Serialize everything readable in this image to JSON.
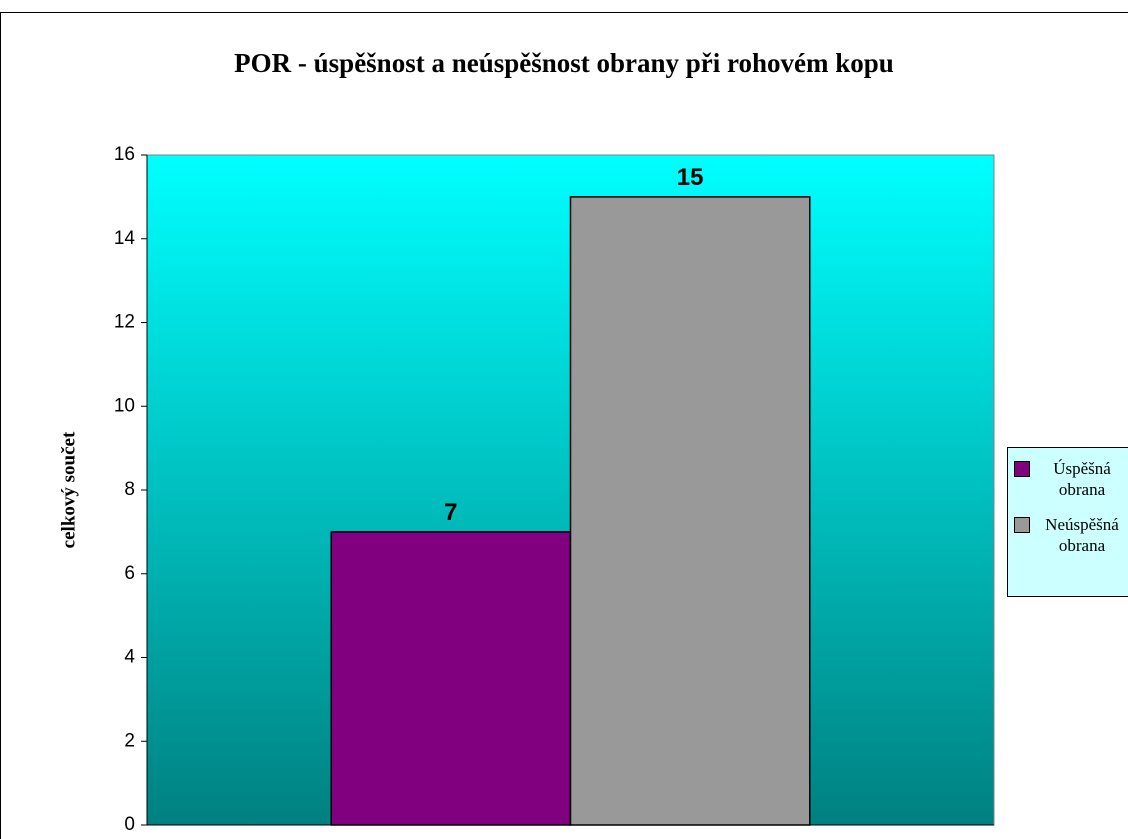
{
  "chart_data": {
    "type": "bar",
    "title": "POR - úspěšnost a neúspěšnost obrany při rohovém kopu",
    "y_label": "celkový součet",
    "categories": [
      null
    ],
    "series": [
      {
        "name": "Úspěšná obrana",
        "color": "#800080",
        "values": [
          7
        ]
      },
      {
        "name": "Neúspěšná obrana",
        "color": "#999999",
        "values": [
          15
        ]
      }
    ],
    "ylim": [
      0,
      16
    ],
    "yticks": [
      0,
      2,
      4,
      6,
      8,
      10,
      12,
      14,
      16
    ],
    "legend": "right"
  }
}
